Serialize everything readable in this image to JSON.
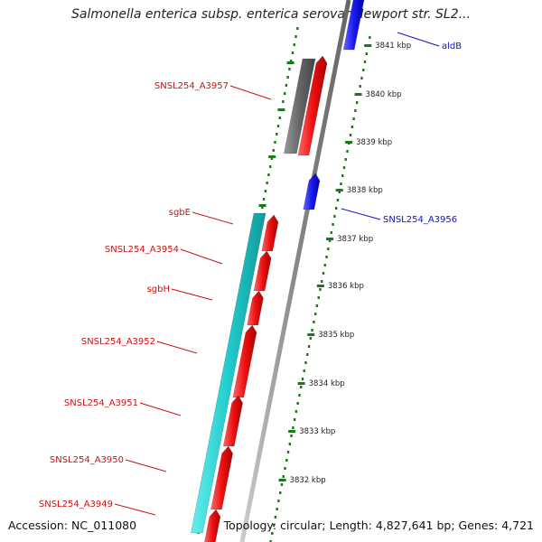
{
  "title": "Salmonella enterica subsp. enterica serovar Newport str. SL2...",
  "footer": {
    "accession": "Accession: NC_011080",
    "summary": "Topology: circular; Length: 4,827,641 bp; Genes: 4,721"
  },
  "scale": {
    "unit": "kbp",
    "ticks": [
      {
        "label": "3841 kbp"
      },
      {
        "label": "3840 kbp"
      },
      {
        "label": "3839 kbp"
      },
      {
        "label": "3838 kbp"
      },
      {
        "label": "3837 kbp"
      },
      {
        "label": "3836 kbp"
      },
      {
        "label": "3835 kbp"
      },
      {
        "label": "3834 kbp"
      },
      {
        "label": "3833 kbp"
      },
      {
        "label": "3832 kbp"
      }
    ]
  },
  "genes_forward": [
    {
      "name": "aldB"
    },
    {
      "name": "SNSL254_A3956"
    }
  ],
  "genes_reverse": [
    {
      "name": "SNSL254_A3957"
    },
    {
      "name": "sgbE"
    },
    {
      "name": "SNSL254_A3954"
    },
    {
      "name": "sgbH"
    },
    {
      "name": "SNSL254_A3952"
    },
    {
      "name": "SNSL254_A3951"
    },
    {
      "name": "SNSL254_A3950"
    },
    {
      "name": "SNSL254_A3949"
    }
  ],
  "colors": {
    "forward_cds": "#1a1aee",
    "reverse_cds": "#ee1111",
    "rna_cyan": "#22cccc",
    "pseudo_gray": "#666666",
    "backbone": "#888888",
    "tick_green": "#1a7a1a",
    "label_red": "#cc1111",
    "label_blue": "#1010cc"
  }
}
